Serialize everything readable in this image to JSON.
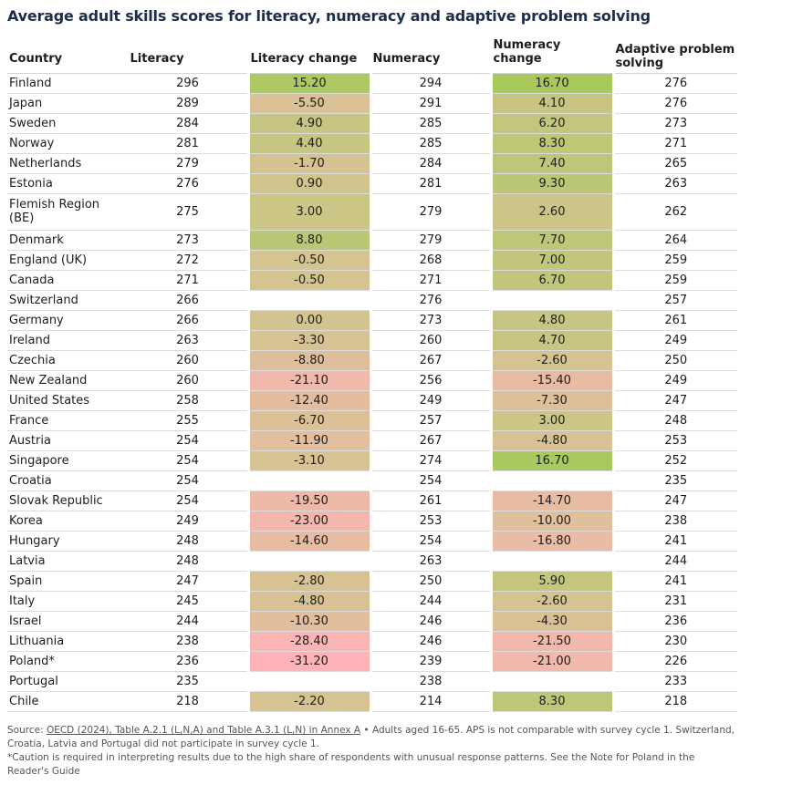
{
  "title": "Average adult skills scores for literacy, numeracy and adaptive problem solving",
  "chart_data": {
    "type": "table",
    "title": "Average adult skills scores for literacy, numeracy and adaptive problem solving",
    "columns": [
      "Country",
      "Literacy",
      "Literacy change",
      "Numeracy",
      "Numeracy change",
      "Adaptive problem solving"
    ],
    "rows": [
      {
        "country": "Finland",
        "literacy": "296",
        "literacy_change": "15.20",
        "numeracy": "294",
        "numeracy_change": "16.70",
        "aps": "276"
      },
      {
        "country": "Japan",
        "literacy": "289",
        "literacy_change": "-5.50",
        "numeracy": "291",
        "numeracy_change": "4.10",
        "aps": "276"
      },
      {
        "country": "Sweden",
        "literacy": "284",
        "literacy_change": "4.90",
        "numeracy": "285",
        "numeracy_change": "6.20",
        "aps": "273"
      },
      {
        "country": "Norway",
        "literacy": "281",
        "literacy_change": "4.40",
        "numeracy": "285",
        "numeracy_change": "8.30",
        "aps": "271"
      },
      {
        "country": "Netherlands",
        "literacy": "279",
        "literacy_change": "-1.70",
        "numeracy": "284",
        "numeracy_change": "7.40",
        "aps": "265"
      },
      {
        "country": "Estonia",
        "literacy": "276",
        "literacy_change": "0.90",
        "numeracy": "281",
        "numeracy_change": "9.30",
        "aps": "263"
      },
      {
        "country": "Flemish Region (BE)",
        "literacy": "275",
        "literacy_change": "3.00",
        "numeracy": "279",
        "numeracy_change": "2.60",
        "aps": "262"
      },
      {
        "country": "Denmark",
        "literacy": "273",
        "literacy_change": "8.80",
        "numeracy": "279",
        "numeracy_change": "7.70",
        "aps": "264"
      },
      {
        "country": "England (UK)",
        "literacy": "272",
        "literacy_change": "-0.50",
        "numeracy": "268",
        "numeracy_change": "7.00",
        "aps": "259"
      },
      {
        "country": "Canada",
        "literacy": "271",
        "literacy_change": "-0.50",
        "numeracy": "271",
        "numeracy_change": "6.70",
        "aps": "259"
      },
      {
        "country": "Switzerland",
        "literacy": "266",
        "literacy_change": "",
        "numeracy": "276",
        "numeracy_change": "",
        "aps": "257"
      },
      {
        "country": "Germany",
        "literacy": "266",
        "literacy_change": "0.00",
        "numeracy": "273",
        "numeracy_change": "4.80",
        "aps": "261"
      },
      {
        "country": "Ireland",
        "literacy": "263",
        "literacy_change": "-3.30",
        "numeracy": "260",
        "numeracy_change": "4.70",
        "aps": "249"
      },
      {
        "country": "Czechia",
        "literacy": "260",
        "literacy_change": "-8.80",
        "numeracy": "267",
        "numeracy_change": "-2.60",
        "aps": "250"
      },
      {
        "country": "New Zealand",
        "literacy": "260",
        "literacy_change": "-21.10",
        "numeracy": "256",
        "numeracy_change": "-15.40",
        "aps": "249"
      },
      {
        "country": "United States",
        "literacy": "258",
        "literacy_change": "-12.40",
        "numeracy": "249",
        "numeracy_change": "-7.30",
        "aps": "247"
      },
      {
        "country": "France",
        "literacy": "255",
        "literacy_change": "-6.70",
        "numeracy": "257",
        "numeracy_change": "3.00",
        "aps": "248"
      },
      {
        "country": "Austria",
        "literacy": "254",
        "literacy_change": "-11.90",
        "numeracy": "267",
        "numeracy_change": "-4.80",
        "aps": "253"
      },
      {
        "country": "Singapore",
        "literacy": "254",
        "literacy_change": "-3.10",
        "numeracy": "274",
        "numeracy_change": "16.70",
        "aps": "252"
      },
      {
        "country": "Croatia",
        "literacy": "254",
        "literacy_change": "",
        "numeracy": "254",
        "numeracy_change": "",
        "aps": "235"
      },
      {
        "country": "Slovak Republic",
        "literacy": "254",
        "literacy_change": "-19.50",
        "numeracy": "261",
        "numeracy_change": "-14.70",
        "aps": "247"
      },
      {
        "country": "Korea",
        "literacy": "249",
        "literacy_change": "-23.00",
        "numeracy": "253",
        "numeracy_change": "-10.00",
        "aps": "238"
      },
      {
        "country": "Hungary",
        "literacy": "248",
        "literacy_change": "-14.60",
        "numeracy": "254",
        "numeracy_change": "-16.80",
        "aps": "241"
      },
      {
        "country": "Latvia",
        "literacy": "248",
        "literacy_change": "",
        "numeracy": "263",
        "numeracy_change": "",
        "aps": "244"
      },
      {
        "country": "Spain",
        "literacy": "247",
        "literacy_change": "-2.80",
        "numeracy": "250",
        "numeracy_change": "5.90",
        "aps": "241"
      },
      {
        "country": "Italy",
        "literacy": "245",
        "literacy_change": "-4.80",
        "numeracy": "244",
        "numeracy_change": "-2.60",
        "aps": "231"
      },
      {
        "country": "Israel",
        "literacy": "244",
        "literacy_change": "-10.30",
        "numeracy": "246",
        "numeracy_change": "-4.30",
        "aps": "236"
      },
      {
        "country": "Lithuania",
        "literacy": "238",
        "literacy_change": "-28.40",
        "numeracy": "246",
        "numeracy_change": "-21.50",
        "aps": "230"
      },
      {
        "country": "Poland*",
        "literacy": "236",
        "literacy_change": "-31.20",
        "numeracy": "239",
        "numeracy_change": "-21.00",
        "aps": "226"
      },
      {
        "country": "Portugal",
        "literacy": "235",
        "literacy_change": "",
        "numeracy": "238",
        "numeracy_change": "",
        "aps": "233"
      },
      {
        "country": "Chile",
        "literacy": "218",
        "literacy_change": "-2.20",
        "numeracy": "214",
        "numeracy_change": "8.30",
        "aps": "218"
      }
    ],
    "color_scale": {
      "max_negative": -31.2,
      "max_positive": 16.7,
      "negative_color": "#ffb3b8",
      "neutral_color": "#d2c48f",
      "positive_color": "#a9c95e"
    }
  },
  "footer": {
    "source_label": "Source:",
    "source_link": "OECD (2024), Table A.2.1 (L,N,A) and Table A.3.1 (L,N) in Annex A",
    "source_note": " • Adults aged 16-65. APS is not comparable with survey cycle 1. Switzerland, Croatia, Latvia and Portugal did not participate in survey cycle 1.",
    "caution": "*Caution is required in interpreting results due to the high share of respondents with unusual response patterns. See the Note for Poland in the Reader's Guide"
  }
}
